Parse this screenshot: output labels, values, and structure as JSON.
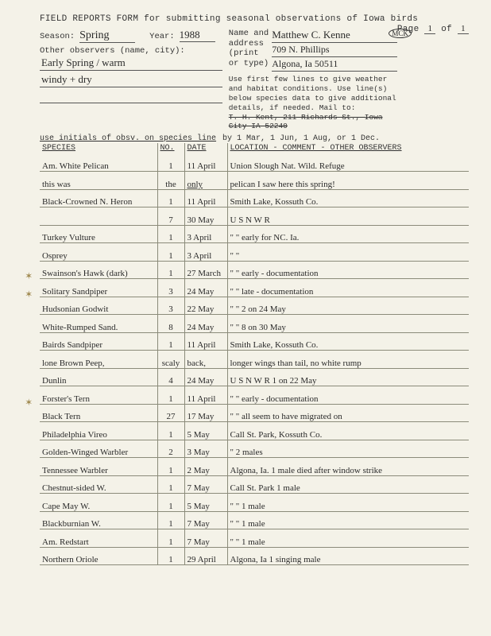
{
  "form_title": "FIELD REPORTS FORM for submitting seasonal observations of Iowa birds",
  "page_label": "Page",
  "page_cur": "1",
  "page_of_label": "of",
  "page_tot": "1",
  "season_label": "Season:",
  "season": "Spring",
  "year_label": "Year:",
  "year": "1988",
  "name_label_1": "Name and",
  "name_label_2": "address",
  "name_label_3": "(print",
  "name_label_4": "or type)",
  "name_line1": "Matthew C. Kenne",
  "initials_circled": "MCK",
  "name_line2": "709 N. Phillips",
  "name_line3": "Algona, Ia 50511",
  "other_obs_label": "Other observers (name, city):",
  "obs_line1": "Early Spring / warm",
  "obs_line2": "windy + dry",
  "instructions_1": "Use first few lines to give weather and habitat conditions. Use line(s) below species data to give additional details, if needed. Mail to:",
  "mailto_strike": "T. H. Kent, 211 Richards St., Iowa City IA 52240",
  "deadline": "by 1 Mar, 1 Jun, 1 Aug, or 1 Dec.",
  "initials_note": "use initials of obsv. on species line",
  "th_species": "SPECIES",
  "th_no": "NO.",
  "th_date": "DATE",
  "th_loc": "LOCATION - COMMENT - OTHER OBSERVERS",
  "rows": [
    {
      "sp": "Am. White Pelican",
      "no": "1",
      "dt": "11 April",
      "loc": "Union Slough Nat. Wild. Refuge",
      "star": false
    },
    {
      "sp": "this was",
      "no": "the",
      "dt": "only",
      "loc": "pelican I saw here this spring!",
      "star": false,
      "underline_dt": true
    },
    {
      "sp": "Black-Crowned N. Heron",
      "no": "1",
      "dt": "11 April",
      "loc": "Smith Lake, Kossuth Co.",
      "star": false
    },
    {
      "sp": "",
      "no": "7",
      "dt": "30 May",
      "loc": "U S N W R",
      "star": false
    },
    {
      "sp": "Turkey Vulture",
      "no": "1",
      "dt": "3 April",
      "loc": "\"  \"    early for NC. Ia.",
      "star": false
    },
    {
      "sp": "Osprey",
      "no": "1",
      "dt": "3 April",
      "loc": "\"  \"",
      "star": false
    },
    {
      "sp": "Swainson's Hawk (dark)",
      "no": "1",
      "dt": "27 March",
      "loc": "\"  \"   early - documentation",
      "star": true
    },
    {
      "sp": "Solitary Sandpiper",
      "no": "3",
      "dt": "24 May",
      "loc": "\"  \"   late - documentation",
      "star": true
    },
    {
      "sp": "Hudsonian Godwit",
      "no": "3",
      "dt": "22 May",
      "loc": "\"  \"   2 on 24 May",
      "star": false
    },
    {
      "sp": "White-Rumped Sand.",
      "no": "8",
      "dt": "24 May",
      "loc": "\"  \"   8 on 30 May",
      "star": false
    },
    {
      "sp": "Bairds Sandpiper",
      "no": "1",
      "dt": "11 April",
      "loc": "Smith Lake, Kossuth Co.",
      "star": false
    },
    {
      "sp": "lone Brown Peep,",
      "no": "scaly",
      "dt": "back,",
      "loc": "longer wings than tail, no white rump",
      "star": false
    },
    {
      "sp": "Dunlin",
      "no": "4",
      "dt": "24 May",
      "loc": "U S N W R    1 on 22 May",
      "star": false
    },
    {
      "sp": "Forster's Tern",
      "no": "1",
      "dt": "11 April",
      "loc": "\"  \"   early - documentation",
      "star": true
    },
    {
      "sp": "Black Tern",
      "no": "27",
      "dt": "17 May",
      "loc": "\"  \"   all seem to have migrated on",
      "star": false
    },
    {
      "sp": "Philadelphia Vireo",
      "no": "1",
      "dt": "5 May",
      "loc": "Call St. Park, Kossuth Co.",
      "star": false
    },
    {
      "sp": "Golden-Winged Warbler",
      "no": "2",
      "dt": "3 May",
      "loc": "\"         2 males",
      "star": false
    },
    {
      "sp": "Tennessee Warbler",
      "no": "1",
      "dt": "2 May",
      "loc": "Algona, Ia.  1 male died after window strike",
      "star": false
    },
    {
      "sp": "Chestnut-sided W.",
      "no": "1",
      "dt": "7 May",
      "loc": "Call St. Park    1 male",
      "star": false
    },
    {
      "sp": "Cape May W.",
      "no": "1",
      "dt": "5 May",
      "loc": "\"   \"        1 male",
      "star": false
    },
    {
      "sp": "Blackburnian W.",
      "no": "1",
      "dt": "7 May",
      "loc": "\"   \"        1 male",
      "star": false
    },
    {
      "sp": "Am. Redstart",
      "no": "1",
      "dt": "7 May",
      "loc": "\"   \"        1 male",
      "star": false
    },
    {
      "sp": "Northern Oriole",
      "no": "1",
      "dt": "29 April",
      "loc": "Algona, Ia   1 singing male",
      "star": false
    }
  ]
}
